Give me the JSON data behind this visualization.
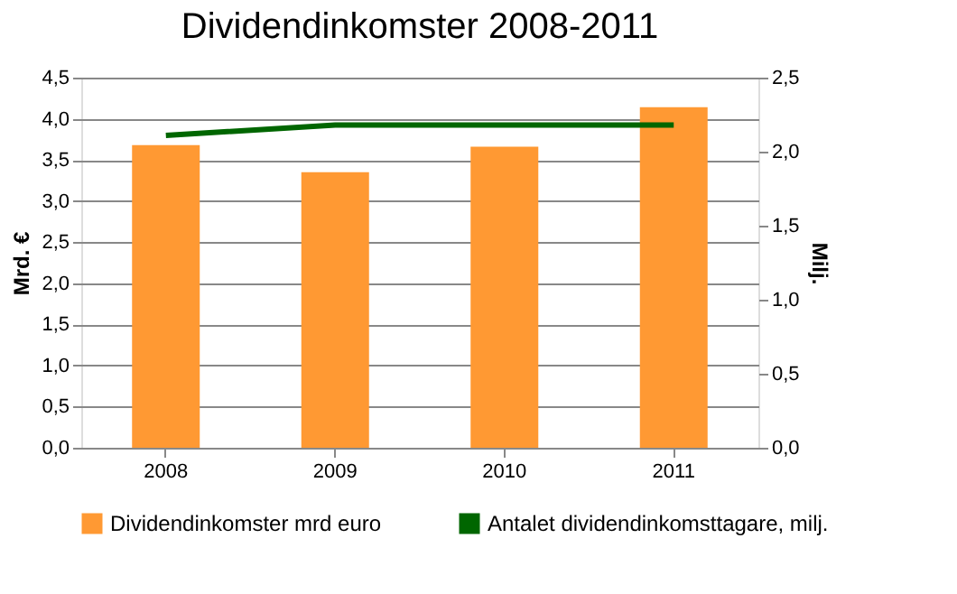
{
  "chart_data": {
    "type": "bar",
    "title": "Dividendinkomster 2008-2011",
    "categories": [
      "2008",
      "2009",
      "2010",
      "2011"
    ],
    "series": [
      {
        "name": "Dividendinkomster mrd euro",
        "color": "#ff9933",
        "values": [
          3.68,
          3.35,
          3.66,
          4.14
        ]
      },
      {
        "name": "Antalet dividendinkomsttagare, milj.",
        "type": "line",
        "axis": "y2",
        "color": "#006600",
        "values": [
          2.11,
          2.18,
          2.18,
          2.18
        ]
      }
    ],
    "ylabel": "Mrd. €",
    "y2label": "Milj.",
    "ylim": [
      0,
      4.5
    ],
    "yticks": [
      {
        "value": 0,
        "label": "0,0"
      },
      {
        "value": 0.5,
        "label": "0,5"
      },
      {
        "value": 1,
        "label": "1,0"
      },
      {
        "value": 1.5,
        "label": "1,5"
      },
      {
        "value": 2,
        "label": "2,0"
      },
      {
        "value": 2.5,
        "label": "2,5"
      },
      {
        "value": 3,
        "label": "3,0"
      },
      {
        "value": 3.5,
        "label": "3,5"
      },
      {
        "value": 4,
        "label": "4,0"
      },
      {
        "value": 4.5,
        "label": "4,5"
      }
    ],
    "y2lim": [
      0,
      2.5
    ],
    "y2ticks": [
      {
        "value": 0,
        "label": "0,0"
      },
      {
        "value": 0.5,
        "label": "0,5"
      },
      {
        "value": 1,
        "label": "1,0"
      },
      {
        "value": 1.5,
        "label": "1,5"
      },
      {
        "value": 2,
        "label": "2,0"
      },
      {
        "value": 2.5,
        "label": "2,5"
      }
    ],
    "grid": "y",
    "legend": "bottom",
    "marker": "none",
    "line_style": "solid"
  }
}
